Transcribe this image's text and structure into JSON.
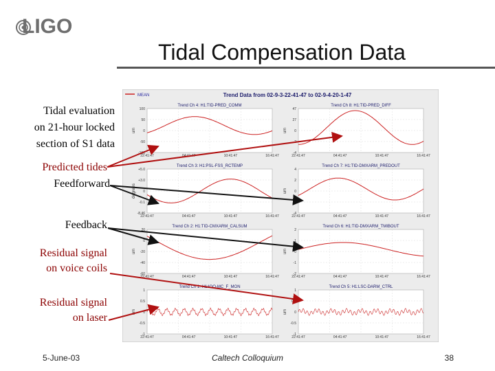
{
  "logo": {
    "text": "LIGO",
    "color": "#6e6e6e"
  },
  "title": "Tidal Compensation Data",
  "labels": {
    "intro": [
      "Tidal evaluation",
      "on 21-hour locked",
      "section of S1 data"
    ],
    "predicted": "Predicted tides",
    "feedforward": "Feedforward",
    "feedback": "Feedback",
    "residual_voice": [
      "Residual signal",
      "on voice coils"
    ],
    "residual_laser": [
      "Residual signal",
      "on laser"
    ]
  },
  "figure": {
    "legend": "MEAN",
    "heading": "Trend Data from 02-9-3-22-41-47 to 02-9-4-20-1-47",
    "panels": [
      {
        "title": "Trend Ch 4: H1:TID-PRED_COMM",
        "unit": "um",
        "yticks": [
          "100",
          "50",
          "0",
          "-50",
          "-100"
        ],
        "xticks": [
          "22:41:47",
          "04:41:47",
          "10:41:47",
          "16:41:47"
        ]
      },
      {
        "title": "Trend Ch 8: H1:TID-PRED_DIFF",
        "unit": "um",
        "yticks": [
          "47",
          "27",
          "0",
          "-2",
          "-4"
        ],
        "xticks": [
          "22:41:47",
          "04:41:47",
          "10:41:47",
          "16:41:47"
        ]
      },
      {
        "title": "Trend Ch 3: H1:PSL-FSS_RCTEMP",
        "unit": "degrees",
        "yticks": [
          "+5.0",
          "+3.0",
          "0",
          "-0.1",
          "-8.46"
        ],
        "xticks": [
          "22:41:47",
          "04:41:47",
          "10:41:47",
          "16:41:47"
        ]
      },
      {
        "title": "Trend Ch 7: H1:TID-DMXARM_PREDOUT",
        "unit": "um",
        "yticks": [
          "4",
          "2",
          "0",
          "-2",
          "-4"
        ],
        "xticks": [
          "22:41:47",
          "04:41:47",
          "10:41:47",
          "16:41:47"
        ]
      },
      {
        "title": "Trend Ch 2: H1:TID-CMXARM_CALSUM",
        "unit": "um",
        "yticks": [
          "20",
          "0",
          "-20",
          "-40",
          "-60"
        ],
        "xticks": [
          "22:41:47",
          "04:41:47",
          "10:41:47",
          "16:41:47"
        ]
      },
      {
        "title": "Trend Ch 6: H1:TID-DMXARM_TMIBOUT",
        "unit": "um",
        "yticks": [
          "2",
          "1",
          "0",
          "-1",
          "-2"
        ],
        "xticks": [
          "22:41:47",
          "04:41:47",
          "10:41:47",
          "16:41:47"
        ]
      },
      {
        "title": "Trend Ch 1: H1:IOO-MC_F_MON",
        "unit": "um",
        "yticks": [
          "1",
          "0.5",
          "0",
          "-0.5",
          "-1"
        ],
        "xticks": [
          "22:41:47",
          "04:41:47",
          "10:41:47",
          "16:41:47"
        ]
      },
      {
        "title": "Trend Ch 5: H1:LSC-DARM_CTRL",
        "unit": "um",
        "yticks": [
          "1",
          "0.5",
          "0",
          "-0.5",
          "-1"
        ],
        "xticks": [
          "22:41:47",
          "04:41:47",
          "10:41:47",
          "16:41:47"
        ]
      }
    ],
    "trace_color": "#cc2020"
  },
  "footer": {
    "date": "5-June-03",
    "center": "Caltech Colloquium",
    "page": "38"
  }
}
